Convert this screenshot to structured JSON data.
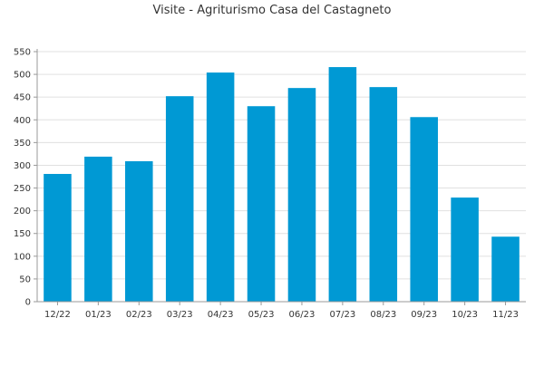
{
  "chart_data": {
    "type": "bar",
    "title": "Visite - Agriturismo Casa del Castagneto",
    "xlabel": "",
    "ylabel": "",
    "categories": [
      "12/22",
      "01/23",
      "02/23",
      "03/23",
      "04/23",
      "05/23",
      "06/23",
      "07/23",
      "08/23",
      "09/23",
      "10/23",
      "11/23"
    ],
    "values": [
      281,
      319,
      309,
      452,
      504,
      430,
      470,
      516,
      472,
      406,
      229,
      143
    ],
    "ylim": [
      0,
      550
    ],
    "yticks": [
      0,
      50,
      100,
      150,
      200,
      250,
      300,
      350,
      400,
      450,
      500,
      550
    ],
    "grid": true,
    "colors": {
      "bar": "#0099d4",
      "grid": "#e0e0e0",
      "axis": "#999999"
    }
  }
}
